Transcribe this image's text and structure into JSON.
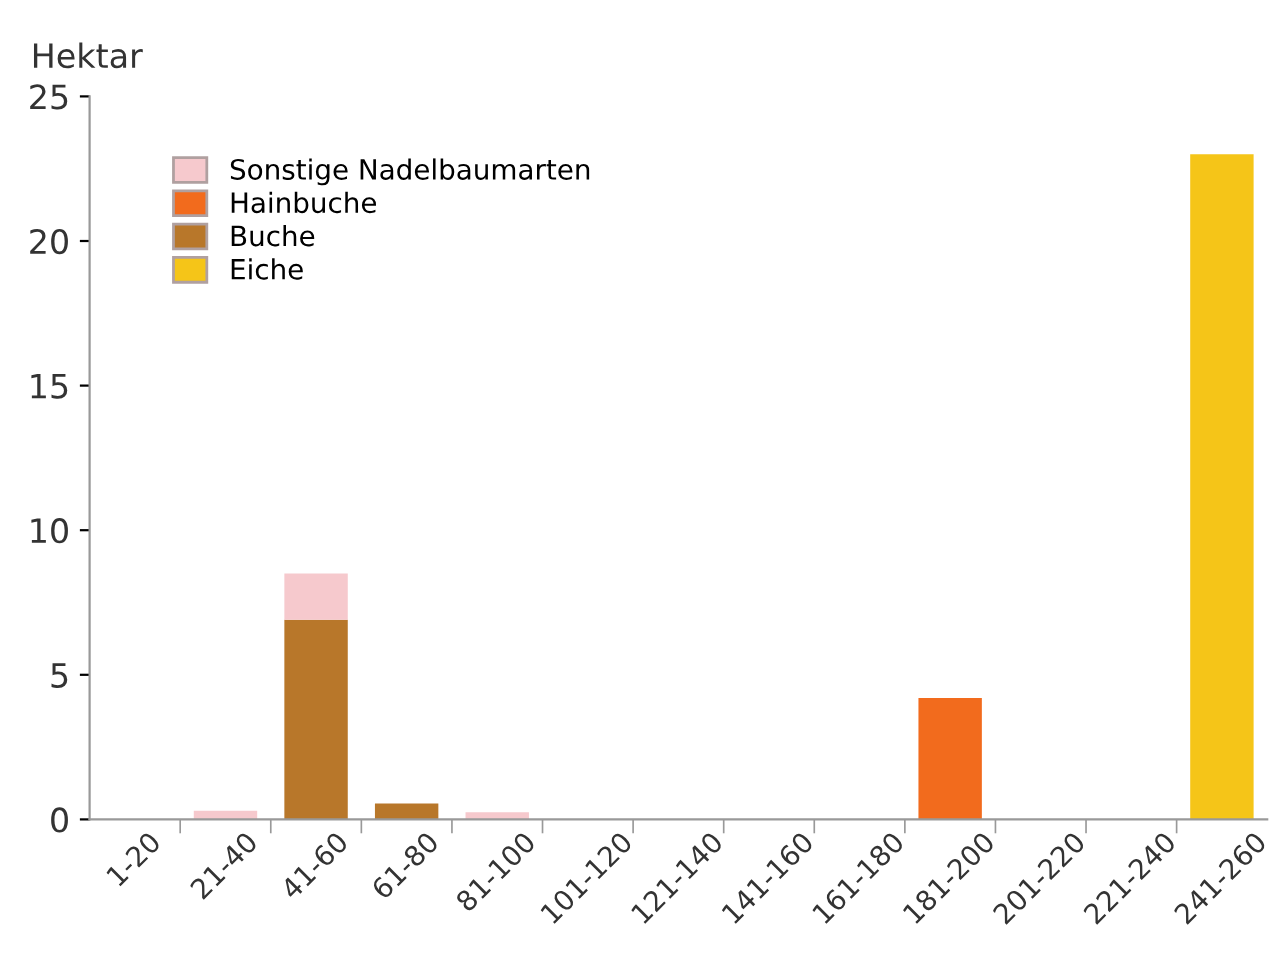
{
  "chart_data": {
    "type": "bar",
    "stacked": true,
    "ylabel": "Hektar",
    "categories": [
      "1-20",
      "21-40",
      "41-60",
      "61-80",
      "81-100",
      "101-120",
      "121-140",
      "141-160",
      "161-180",
      "181-200",
      "201-220",
      "221-240",
      "241-260"
    ],
    "series": [
      {
        "name": "Eiche",
        "color": "#f5c518",
        "values": [
          0,
          0,
          0,
          0,
          0,
          0,
          0,
          0,
          0,
          0,
          0,
          0,
          23
        ]
      },
      {
        "name": "Buche",
        "color": "#b8772a",
        "values": [
          0,
          0,
          6.9,
          0.55,
          0,
          0,
          0,
          0,
          0,
          0,
          0,
          0,
          0
        ]
      },
      {
        "name": "Hainbuche",
        "color": "#f26b1d",
        "values": [
          0,
          0,
          0,
          0,
          0,
          0,
          0,
          0,
          0,
          4.2,
          0,
          0,
          0
        ]
      },
      {
        "name": "Sonstige Nadelbaumarten",
        "color": "#f6c9cd",
        "values": [
          0,
          0.3,
          1.6,
          0,
          0.25,
          0,
          0,
          0,
          0,
          0,
          0,
          0,
          0
        ]
      }
    ],
    "ylim": [
      0,
      25
    ],
    "yticks": [
      0,
      5,
      10,
      15,
      20,
      25
    ],
    "grid": false,
    "legend": "top left"
  }
}
